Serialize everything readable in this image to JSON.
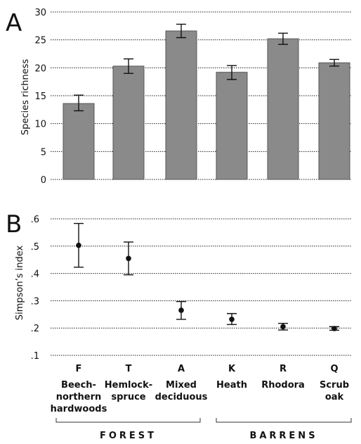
{
  "chart_data": [
    {
      "type": "bar",
      "panel": "A",
      "ylabel": "Species richness",
      "ylim": [
        0,
        30
      ],
      "yticks": [
        "0",
        "5",
        "10",
        "15",
        "20",
        "25",
        "30"
      ],
      "grid": true,
      "values": [
        13.6,
        20.3,
        26.6,
        19.2,
        25.2,
        20.9
      ],
      "error_low": [
        12.3,
        19.0,
        25.4,
        17.9,
        24.2,
        20.3
      ],
      "error_high": [
        15.1,
        21.6,
        27.8,
        20.4,
        26.2,
        21.5
      ]
    },
    {
      "type": "scatter",
      "panel": "B",
      "ylabel": "Simpson’s index",
      "ylim": [
        0.1,
        0.6
      ],
      "yticks": [
        ".1",
        ".2",
        ".3",
        ".4",
        ".5",
        ".6"
      ],
      "grid": true,
      "values": [
        0.503,
        0.455,
        0.265,
        0.232,
        0.205,
        0.198
      ],
      "error_low": [
        0.423,
        0.395,
        0.232,
        0.213,
        0.193,
        0.192
      ],
      "error_high": [
        0.583,
        0.515,
        0.297,
        0.253,
        0.217,
        0.205
      ]
    }
  ],
  "categories": [
    {
      "code": "F",
      "lines": [
        "Beech-",
        "northern",
        "hardwoods"
      ]
    },
    {
      "code": "T",
      "lines": [
        "Hemlock-",
        "spruce"
      ]
    },
    {
      "code": "A",
      "lines": [
        "Mixed",
        "deciduous"
      ]
    },
    {
      "code": "K",
      "lines": [
        "Heath"
      ]
    },
    {
      "code": "R",
      "lines": [
        "Rhodora"
      ]
    },
    {
      "code": "Q",
      "lines": [
        "Scrub",
        "oak"
      ]
    }
  ],
  "groups": [
    {
      "label": "FOREST",
      "from": 0,
      "to": 2
    },
    {
      "label": "BARRENS",
      "from": 3,
      "to": 5
    }
  ]
}
